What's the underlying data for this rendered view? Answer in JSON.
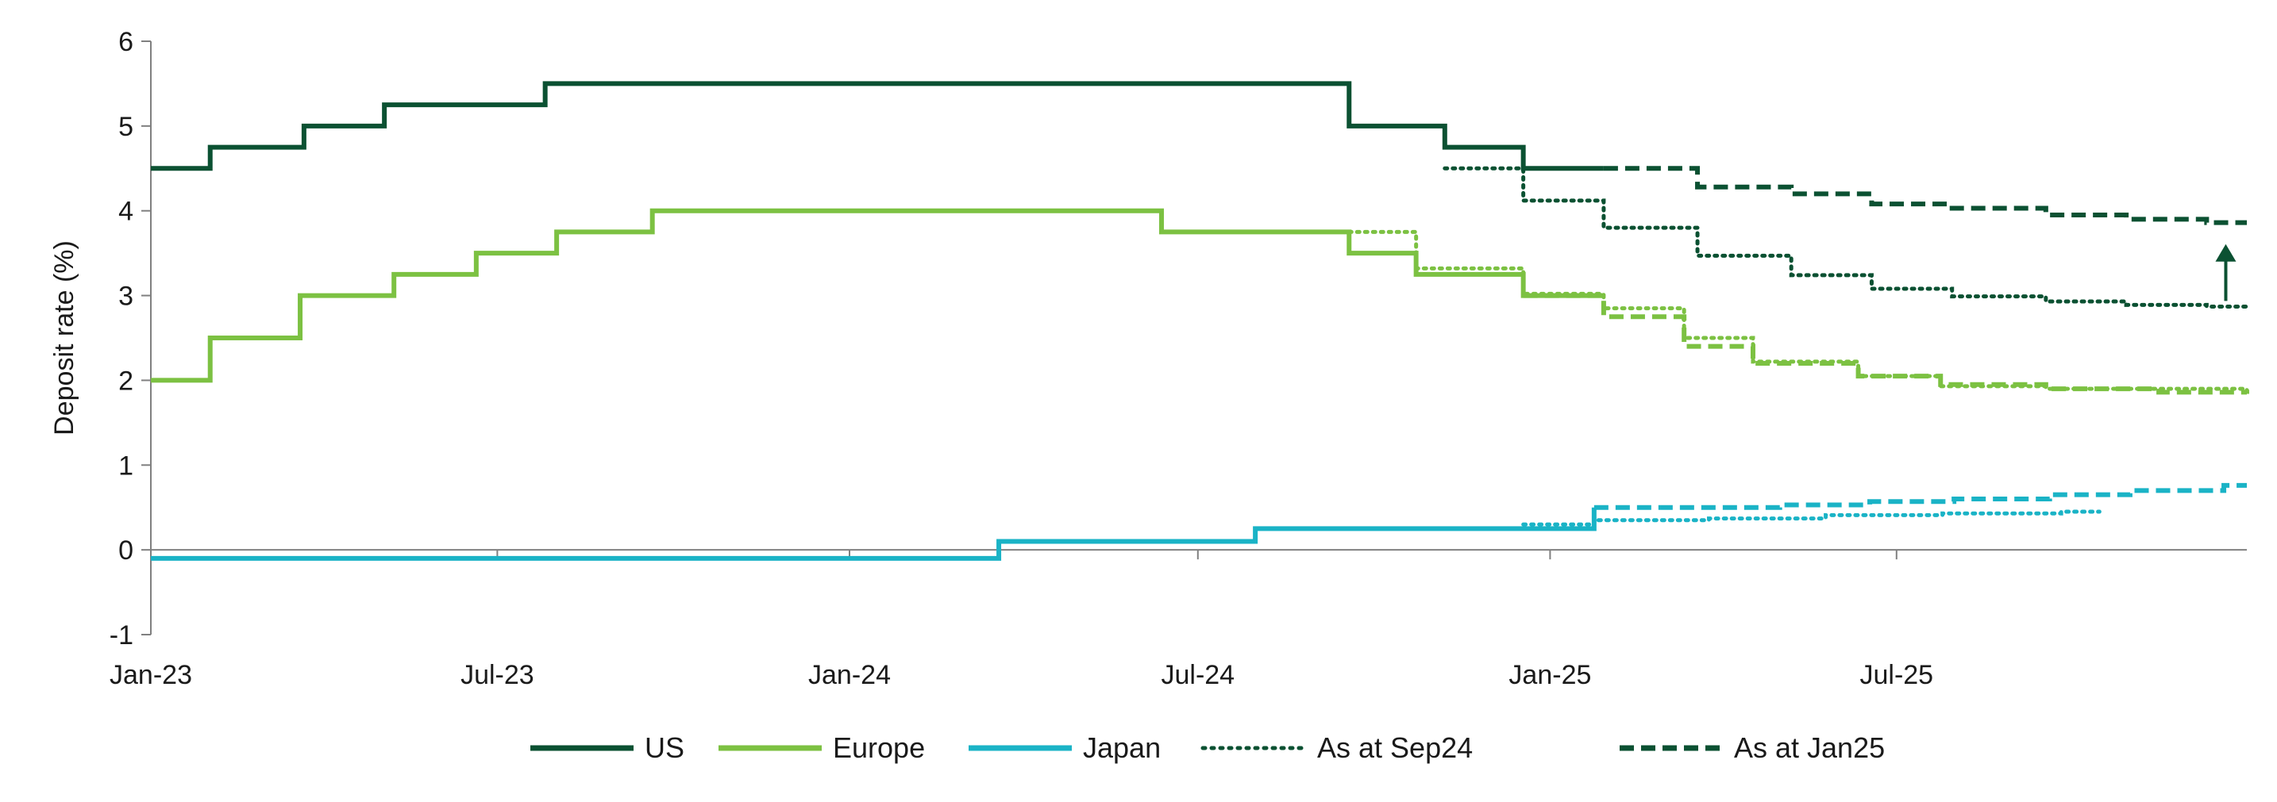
{
  "chart_data": {
    "type": "line",
    "title": "",
    "xlabel": "",
    "ylabel": "Deposit rate (%)",
    "ylim": [
      -1,
      6
    ],
    "yticks": [
      "6",
      "5",
      "4",
      "3",
      "2",
      "1",
      "0",
      "-1"
    ],
    "xlim": [
      "2023-01",
      "2025-12"
    ],
    "xticks": [
      {
        "label": "Jan-23",
        "date": "2023-01"
      },
      {
        "label": "Jul-23",
        "date": "2023-07"
      },
      {
        "label": "Jan-24",
        "date": "2024-01"
      },
      {
        "label": "Jul-24",
        "date": "2024-07"
      },
      {
        "label": "Jan-25",
        "date": "2025-01"
      },
      {
        "label": "Jul-25",
        "date": "2025-07"
      }
    ],
    "grid": false,
    "legend_position": "bottom",
    "colors": {
      "us": "#0b5132",
      "europe": "#7cc142",
      "japan": "#1ab3c6",
      "legend_dotted": "#0b5132",
      "legend_dashed": "#0b5132"
    },
    "legend": [
      {
        "label": "US",
        "style": "solid",
        "color": "#0b5132"
      },
      {
        "label": "Europe",
        "style": "solid",
        "color": "#7cc142"
      },
      {
        "label": "Japan",
        "style": "solid",
        "color": "#1ab3c6"
      },
      {
        "label": "As at Sep24",
        "style": "dotted",
        "color": "#0b5132"
      },
      {
        "label": "As at Jan25",
        "style": "dashed",
        "color": "#0b5132"
      }
    ],
    "series": [
      {
        "name": "US",
        "color": "#0b5132",
        "style": "solid",
        "points": [
          [
            "2023-01-01",
            4.5
          ],
          [
            "2023-02-01",
            4.75
          ],
          [
            "2023-03-22",
            5.0
          ],
          [
            "2023-05-03",
            5.25
          ],
          [
            "2023-07-26",
            5.5
          ],
          [
            "2024-09-18",
            5.0
          ],
          [
            "2024-11-07",
            4.75
          ],
          [
            "2024-12-18",
            4.5
          ],
          [
            "2025-01-29",
            4.5
          ]
        ]
      },
      {
        "name": "Europe",
        "color": "#7cc142",
        "style": "solid",
        "points": [
          [
            "2023-01-01",
            2.0
          ],
          [
            "2023-02-01",
            2.5
          ],
          [
            "2023-03-20",
            3.0
          ],
          [
            "2023-05-08",
            3.25
          ],
          [
            "2023-06-20",
            3.5
          ],
          [
            "2023-08-01",
            3.75
          ],
          [
            "2023-09-20",
            4.0
          ],
          [
            "2024-06-12",
            3.75
          ],
          [
            "2024-09-18",
            3.5
          ],
          [
            "2024-10-23",
            3.25
          ],
          [
            "2024-12-18",
            3.0
          ],
          [
            "2025-01-29",
            3.0
          ]
        ]
      },
      {
        "name": "Japan",
        "color": "#1ab3c6",
        "style": "solid",
        "points": [
          [
            "2023-01-01",
            -0.1
          ],
          [
            "2024-03-19",
            0.1
          ],
          [
            "2024-07-31",
            0.25
          ],
          [
            "2025-01-24",
            0.5
          ]
        ]
      },
      {
        "name": "As at Sep24",
        "color": "#0b5132",
        "style": "dotted",
        "points": [
          [
            "2024-11-07",
            4.5
          ],
          [
            "2024-12-18",
            4.12
          ],
          [
            "2025-01-29",
            3.8
          ],
          [
            "2025-03-19",
            3.47
          ],
          [
            "2025-05-07",
            3.24
          ],
          [
            "2025-06-18",
            3.08
          ],
          [
            "2025-07-30",
            2.99
          ],
          [
            "2025-09-17",
            2.93
          ],
          [
            "2025-10-29",
            2.89
          ],
          [
            "2025-12-10",
            2.87
          ],
          [
            "2025-12-31",
            2.87
          ]
        ]
      },
      {
        "name": "As at Jan25",
        "color": "#0b5132",
        "style": "dashed",
        "points": [
          [
            "2025-01-29",
            4.5
          ],
          [
            "2025-03-19",
            4.28
          ],
          [
            "2025-05-07",
            4.2
          ],
          [
            "2025-06-18",
            4.08
          ],
          [
            "2025-07-30",
            4.03
          ],
          [
            "2025-09-17",
            3.95
          ],
          [
            "2025-10-29",
            3.9
          ],
          [
            "2025-12-10",
            3.86
          ],
          [
            "2025-12-31",
            3.86
          ]
        ]
      },
      {
        "name": "As at Sep24",
        "color": "#7cc142",
        "style": "dotted",
        "points": [
          [
            "2024-09-18",
            3.75
          ],
          [
            "2024-10-23",
            3.32
          ],
          [
            "2024-12-18",
            3.02
          ],
          [
            "2025-01-29",
            2.85
          ],
          [
            "2025-03-12",
            2.5
          ],
          [
            "2025-04-17",
            2.22
          ],
          [
            "2025-06-11",
            2.05
          ],
          [
            "2025-07-24",
            1.93
          ],
          [
            "2025-09-17",
            1.9
          ],
          [
            "2025-12-31",
            1.87
          ]
        ]
      },
      {
        "name": "As at Jan25",
        "color": "#7cc142",
        "style": "dashed",
        "points": [
          [
            "2024-12-18",
            3.0
          ],
          [
            "2025-01-29",
            2.75
          ],
          [
            "2025-03-12",
            2.4
          ],
          [
            "2025-04-17",
            2.2
          ],
          [
            "2025-06-11",
            2.05
          ],
          [
            "2025-07-24",
            1.95
          ],
          [
            "2025-09-17",
            1.9
          ],
          [
            "2025-11-15",
            1.86
          ],
          [
            "2025-12-31",
            1.84
          ]
        ]
      },
      {
        "name": "As at Sep24",
        "color": "#1ab3c6",
        "style": "dotted",
        "points": [
          [
            "2024-12-18",
            0.3
          ],
          [
            "2025-01-24",
            0.35
          ],
          [
            "2025-03-25",
            0.37
          ],
          [
            "2025-05-25",
            0.41
          ],
          [
            "2025-07-25",
            0.43
          ],
          [
            "2025-09-25",
            0.45
          ],
          [
            "2025-10-15",
            0.45
          ]
        ]
      },
      {
        "name": "As at Jan25",
        "color": "#1ab3c6",
        "style": "dashed",
        "points": [
          [
            "2025-01-24",
            0.5
          ],
          [
            "2025-03-19",
            0.5
          ],
          [
            "2025-05-01",
            0.53
          ],
          [
            "2025-06-17",
            0.57
          ],
          [
            "2025-07-31",
            0.6
          ],
          [
            "2025-09-19",
            0.65
          ],
          [
            "2025-10-31",
            0.7
          ],
          [
            "2025-12-19",
            0.76
          ],
          [
            "2025-12-31",
            0.76
          ]
        ]
      }
    ],
    "annotations": [
      {
        "type": "arrow",
        "direction": "up",
        "from": [
          "2025-12-20",
          2.88
        ],
        "to": [
          "2025-12-20",
          3.85
        ],
        "color": "#0b5132"
      }
    ]
  }
}
